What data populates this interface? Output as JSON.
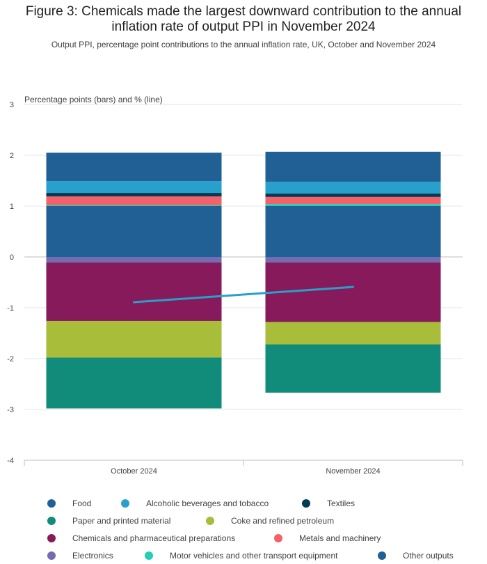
{
  "title_line1": "Figure 3: Chemicals made the largest downward contribution to the annual",
  "title_line2": "inflation rate of output PPI in November 2024",
  "subtitle": "Output PPI, percentage point contributions to the annual inflation rate, UK, October and November 2024",
  "chart_data": {
    "type": "bar",
    "stacked": true,
    "ylabel": "Percentage points (bars) and % (line)",
    "ylim": [
      -4,
      3
    ],
    "yticks": [
      -4,
      -3,
      -2,
      -1,
      0,
      1,
      2,
      3
    ],
    "grid": true,
    "legend_position": "bottom",
    "categories": [
      "October 2024",
      "November 2024"
    ],
    "series": [
      {
        "name": "Food",
        "color": "#206095",
        "values": [
          1.0,
          1.0
        ]
      },
      {
        "name": "Alcoholic beverages and tobacco",
        "color": "#27a0cc",
        "values": [
          0.23,
          0.23
        ]
      },
      {
        "name": "Textiles",
        "color": "#003c57",
        "values": [
          0.07,
          0.07
        ]
      },
      {
        "name": "Paper and printed material",
        "color": "#118c7b",
        "values": [
          -1.0,
          -0.95
        ]
      },
      {
        "name": "Coke and refined petroleum",
        "color": "#a8bd3a",
        "values": [
          -0.72,
          -0.44
        ]
      },
      {
        "name": "Chemicals and pharmaceutical preparations",
        "color": "#871a5b",
        "values": [
          -1.15,
          -1.17
        ]
      },
      {
        "name": "Metals and machinery",
        "color": "#f66068",
        "values": [
          0.17,
          0.14
        ]
      },
      {
        "name": "Electronics",
        "color": "#746cb1",
        "values": [
          -0.11,
          -0.11
        ]
      },
      {
        "name": "Motor vehicles and other transport equipment",
        "color": "#22d0b6",
        "values": [
          0.02,
          0.04
        ]
      },
      {
        "name": "Other outputs",
        "color": "#206095",
        "values": [
          0.56,
          0.59
        ]
      }
    ],
    "stack_order_positive": [
      "Food",
      "Motor vehicles and other transport equipment",
      "Metals and machinery",
      "Textiles",
      "Alcoholic beverages and tobacco",
      "Other outputs"
    ],
    "stack_order_negative": [
      "Electronics",
      "Chemicals and pharmaceutical preparations",
      "Coke and refined petroleum",
      "Paper and printed material"
    ],
    "line": {
      "color": "#27a0cc",
      "values": [
        -0.89,
        -0.59
      ]
    }
  }
}
